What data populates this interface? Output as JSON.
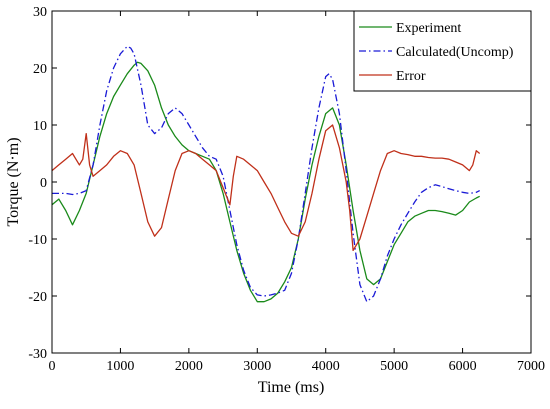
{
  "chart_data": {
    "type": "line",
    "title": "",
    "xlabel": "Time (ms)",
    "ylabel": "Torque (N·m)",
    "xlim": [
      0,
      7000
    ],
    "ylim": [
      -30,
      30
    ],
    "x_ticks": [
      0,
      1000,
      2000,
      3000,
      4000,
      5000,
      6000,
      7000
    ],
    "y_ticks": [
      -30,
      -20,
      -10,
      0,
      10,
      20,
      30
    ],
    "x_tick_labels": [
      "0",
      "1000",
      "2000",
      "3000",
      "4000",
      "5000",
      "6000",
      "7000"
    ],
    "y_tick_labels": [
      "-30",
      "-20",
      "-10",
      "0",
      "10",
      "20",
      "30"
    ],
    "grid": false,
    "legend_position": "top-right",
    "series": [
      {
        "name": "Experiment",
        "color": "#1a8a1a",
        "dash": "solid",
        "x": [
          0,
          100,
          200,
          300,
          400,
          500,
          600,
          700,
          800,
          900,
          1000,
          1100,
          1200,
          1250,
          1300,
          1400,
          1500,
          1600,
          1700,
          1800,
          1900,
          2000,
          2100,
          2200,
          2300,
          2400,
          2500,
          2600,
          2700,
          2800,
          2900,
          3000,
          3100,
          3200,
          3300,
          3400,
          3500,
          3600,
          3700,
          3800,
          3900,
          4000,
          4100,
          4200,
          4300,
          4400,
          4500,
          4600,
          4700,
          4800,
          4900,
          5000,
          5100,
          5200,
          5300,
          5400,
          5500,
          5600,
          5700,
          5800,
          5900,
          6000,
          6100,
          6200,
          6250
        ],
        "y": [
          -4,
          -3,
          -5,
          -7.5,
          -5,
          -2,
          3,
          8,
          12,
          15,
          17,
          19,
          20.5,
          21,
          20.8,
          19.5,
          17,
          13,
          10,
          8,
          6.5,
          5.5,
          5,
          4.5,
          4,
          2,
          -2,
          -7,
          -12,
          -16,
          -19,
          -21,
          -21,
          -20.5,
          -19.5,
          -17.5,
          -15,
          -10,
          -3,
          3,
          8,
          12,
          13,
          10,
          3,
          -5,
          -12,
          -17,
          -18,
          -17,
          -14,
          -11,
          -9,
          -7,
          -6,
          -5.5,
          -5,
          -5,
          -5.2,
          -5.5,
          -5.8,
          -5,
          -3.5,
          -2.8,
          -2.5
        ]
      },
      {
        "name": "Calculated(Uncomp)",
        "color": "#1a1ad6",
        "dash": "dashdot",
        "x": [
          0,
          100,
          200,
          300,
          400,
          500,
          600,
          700,
          800,
          900,
          1000,
          1100,
          1150,
          1200,
          1300,
          1400,
          1500,
          1600,
          1700,
          1800,
          1900,
          2000,
          2100,
          2200,
          2300,
          2400,
          2500,
          2600,
          2700,
          2800,
          2900,
          3000,
          3100,
          3200,
          3300,
          3400,
          3500,
          3600,
          3700,
          3800,
          3900,
          4000,
          4050,
          4100,
          4200,
          4300,
          4400,
          4500,
          4600,
          4700,
          4800,
          4900,
          5000,
          5100,
          5200,
          5300,
          5400,
          5500,
          5600,
          5700,
          5800,
          5900,
          6000,
          6100,
          6200,
          6250
        ],
        "y": [
          -2,
          -2,
          -2,
          -2.2,
          -2,
          -1.5,
          3,
          10,
          16,
          20,
          22.5,
          23.8,
          23.5,
          22.5,
          17,
          10,
          8.5,
          9.5,
          12,
          13,
          12,
          10,
          8,
          6,
          4.5,
          4,
          1,
          -5,
          -11,
          -15.5,
          -18.5,
          -19.8,
          -20,
          -19.8,
          -19.5,
          -19,
          -16,
          -10,
          -2,
          6,
          13,
          18.5,
          19,
          18,
          12,
          2,
          -9,
          -18,
          -21,
          -20,
          -17,
          -13,
          -10,
          -7.5,
          -5.5,
          -3.5,
          -1.8,
          -1,
          -0.5,
          -0.8,
          -1.2,
          -1.5,
          -1.8,
          -2,
          -1.8,
          -1.5
        ]
      },
      {
        "name": "Error",
        "color": "#c0301a",
        "dash": "solid",
        "x": [
          0,
          100,
          200,
          300,
          400,
          450,
          500,
          550,
          600,
          700,
          800,
          900,
          1000,
          1100,
          1200,
          1300,
          1400,
          1500,
          1600,
          1700,
          1800,
          1900,
          2000,
          2100,
          2200,
          2300,
          2400,
          2500,
          2600,
          2650,
          2700,
          2800,
          2900,
          3000,
          3100,
          3200,
          3300,
          3400,
          3500,
          3600,
          3700,
          3800,
          3900,
          4000,
          4100,
          4200,
          4300,
          4350,
          4400,
          4500,
          4600,
          4700,
          4800,
          4900,
          5000,
          5100,
          5200,
          5300,
          5400,
          5500,
          5600,
          5700,
          5800,
          5900,
          6000,
          6100,
          6150,
          6200,
          6250
        ],
        "y": [
          2,
          3,
          4,
          5,
          3,
          4,
          8.5,
          3,
          1,
          2,
          3,
          4.5,
          5.5,
          5,
          3,
          -2,
          -7,
          -9.5,
          -8,
          -3,
          2,
          5,
          5.5,
          5,
          4,
          3,
          2,
          -1,
          -4,
          1,
          4.5,
          4,
          3,
          2,
          0,
          -2,
          -4.5,
          -7,
          -9,
          -9.5,
          -7,
          -2,
          4,
          9,
          10,
          6,
          0,
          -5,
          -12,
          -10,
          -6,
          -2,
          2,
          5,
          5.5,
          5,
          4.8,
          4.5,
          4.5,
          4.3,
          4.2,
          4.2,
          4,
          3.5,
          3,
          2,
          3,
          5.5,
          5
        ]
      }
    ]
  }
}
